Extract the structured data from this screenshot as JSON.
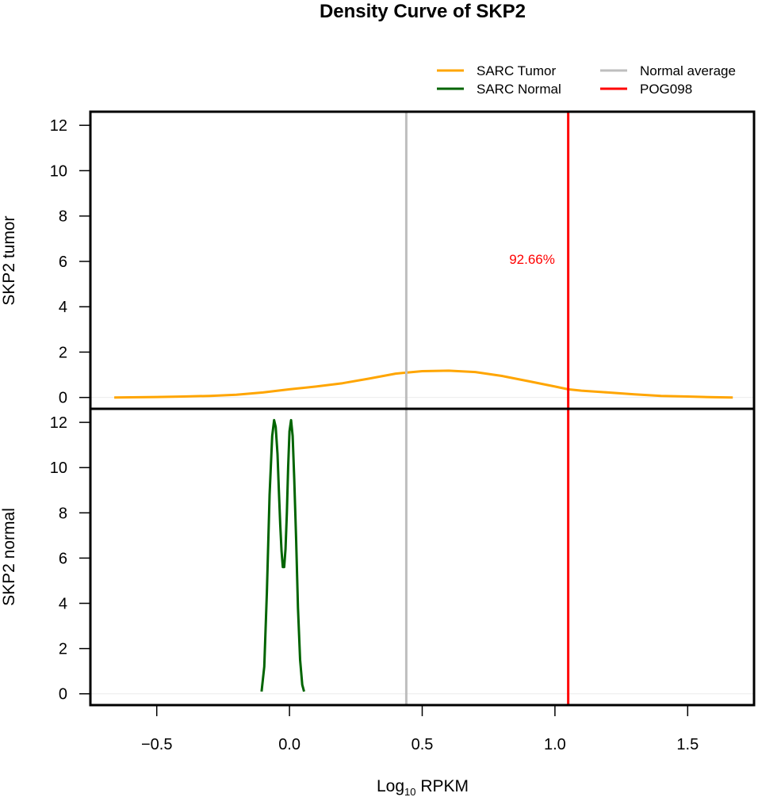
{
  "chart_data": {
    "type": "line",
    "title": "Density Curve of  SKP2",
    "xlabel": {
      "main": "Log",
      "sub": "10",
      "rest": " RPKM"
    },
    "xlim": [
      -0.75,
      1.75
    ],
    "x_ticks": [
      -0.5,
      0.0,
      0.5,
      1.0,
      1.5
    ],
    "x_tick_labels": [
      "−0.5",
      "0.0",
      "0.5",
      "1.0",
      "1.5"
    ],
    "legend": {
      "placement": "top-right",
      "entries": [
        {
          "label": "SARC  Tumor",
          "color": "#FFA500"
        },
        {
          "label": "SARC  Normal",
          "color": "#006400"
        },
        {
          "label": "Normal  average",
          "color": "#BEBEBE"
        },
        {
          "label": "POG098",
          "color": "#FF0000"
        }
      ]
    },
    "vlines": [
      {
        "name": "Normal  average",
        "x": 0.44,
        "color": "#BEBEBE"
      },
      {
        "name": "POG098",
        "x": 1.05,
        "color": "#FF0000"
      }
    ],
    "annotation": {
      "text": "92.66%",
      "x": 1.0,
      "y": 6.1,
      "color": "#FF0000",
      "panel": "tumor"
    },
    "panels": [
      {
        "id": "tumor",
        "ylabel": "SKP2  tumor",
        "ylim": [
          -0.5,
          12.6
        ],
        "y_ticks": [
          0,
          2,
          4,
          6,
          8,
          10,
          12
        ],
        "y_tick_labels": [
          "0",
          "2",
          "4",
          "6",
          "8",
          "10",
          "12"
        ],
        "series": [
          {
            "name": "SARC  Tumor",
            "color": "#FFA500",
            "x": [
              -0.66,
              -0.5,
              -0.4,
              -0.3,
              -0.2,
              -0.1,
              0.0,
              0.1,
              0.2,
              0.3,
              0.4,
              0.5,
              0.6,
              0.7,
              0.8,
              0.9,
              1.0,
              1.05,
              1.1,
              1.2,
              1.3,
              1.4,
              1.5,
              1.6,
              1.67
            ],
            "y": [
              0.0,
              0.02,
              0.04,
              0.07,
              0.12,
              0.22,
              0.36,
              0.48,
              0.63,
              0.83,
              1.05,
              1.16,
              1.18,
              1.12,
              0.95,
              0.72,
              0.48,
              0.36,
              0.3,
              0.22,
              0.14,
              0.07,
              0.04,
              0.01,
              0.0
            ]
          }
        ]
      },
      {
        "id": "normal",
        "ylabel": "SKP2  normal",
        "ylim": [
          -0.5,
          12.6
        ],
        "y_ticks": [
          0,
          2,
          4,
          6,
          8,
          10,
          12
        ],
        "y_tick_labels": [
          "0",
          "2",
          "4",
          "6",
          "8",
          "10",
          "12"
        ],
        "series": [
          {
            "name": "SARC  Normal",
            "color": "#006400",
            "x": [
              -0.105,
              -0.095,
              -0.085,
              -0.075,
              -0.065,
              -0.058,
              -0.052,
              -0.045,
              -0.04,
              -0.035,
              -0.03,
              -0.025,
              -0.02,
              -0.015,
              -0.01,
              -0.005,
              0.0,
              0.006,
              0.012,
              0.018,
              0.025,
              0.032,
              0.04,
              0.048,
              0.055
            ],
            "y": [
              0.1,
              1.2,
              4.5,
              8.8,
              11.4,
              12.1,
              11.8,
              10.6,
              9.0,
              7.5,
              6.3,
              5.6,
              5.6,
              6.4,
              8.0,
              10.0,
              11.6,
              12.1,
              11.4,
              9.5,
              6.8,
              3.8,
              1.5,
              0.4,
              0.1
            ]
          }
        ]
      }
    ]
  }
}
